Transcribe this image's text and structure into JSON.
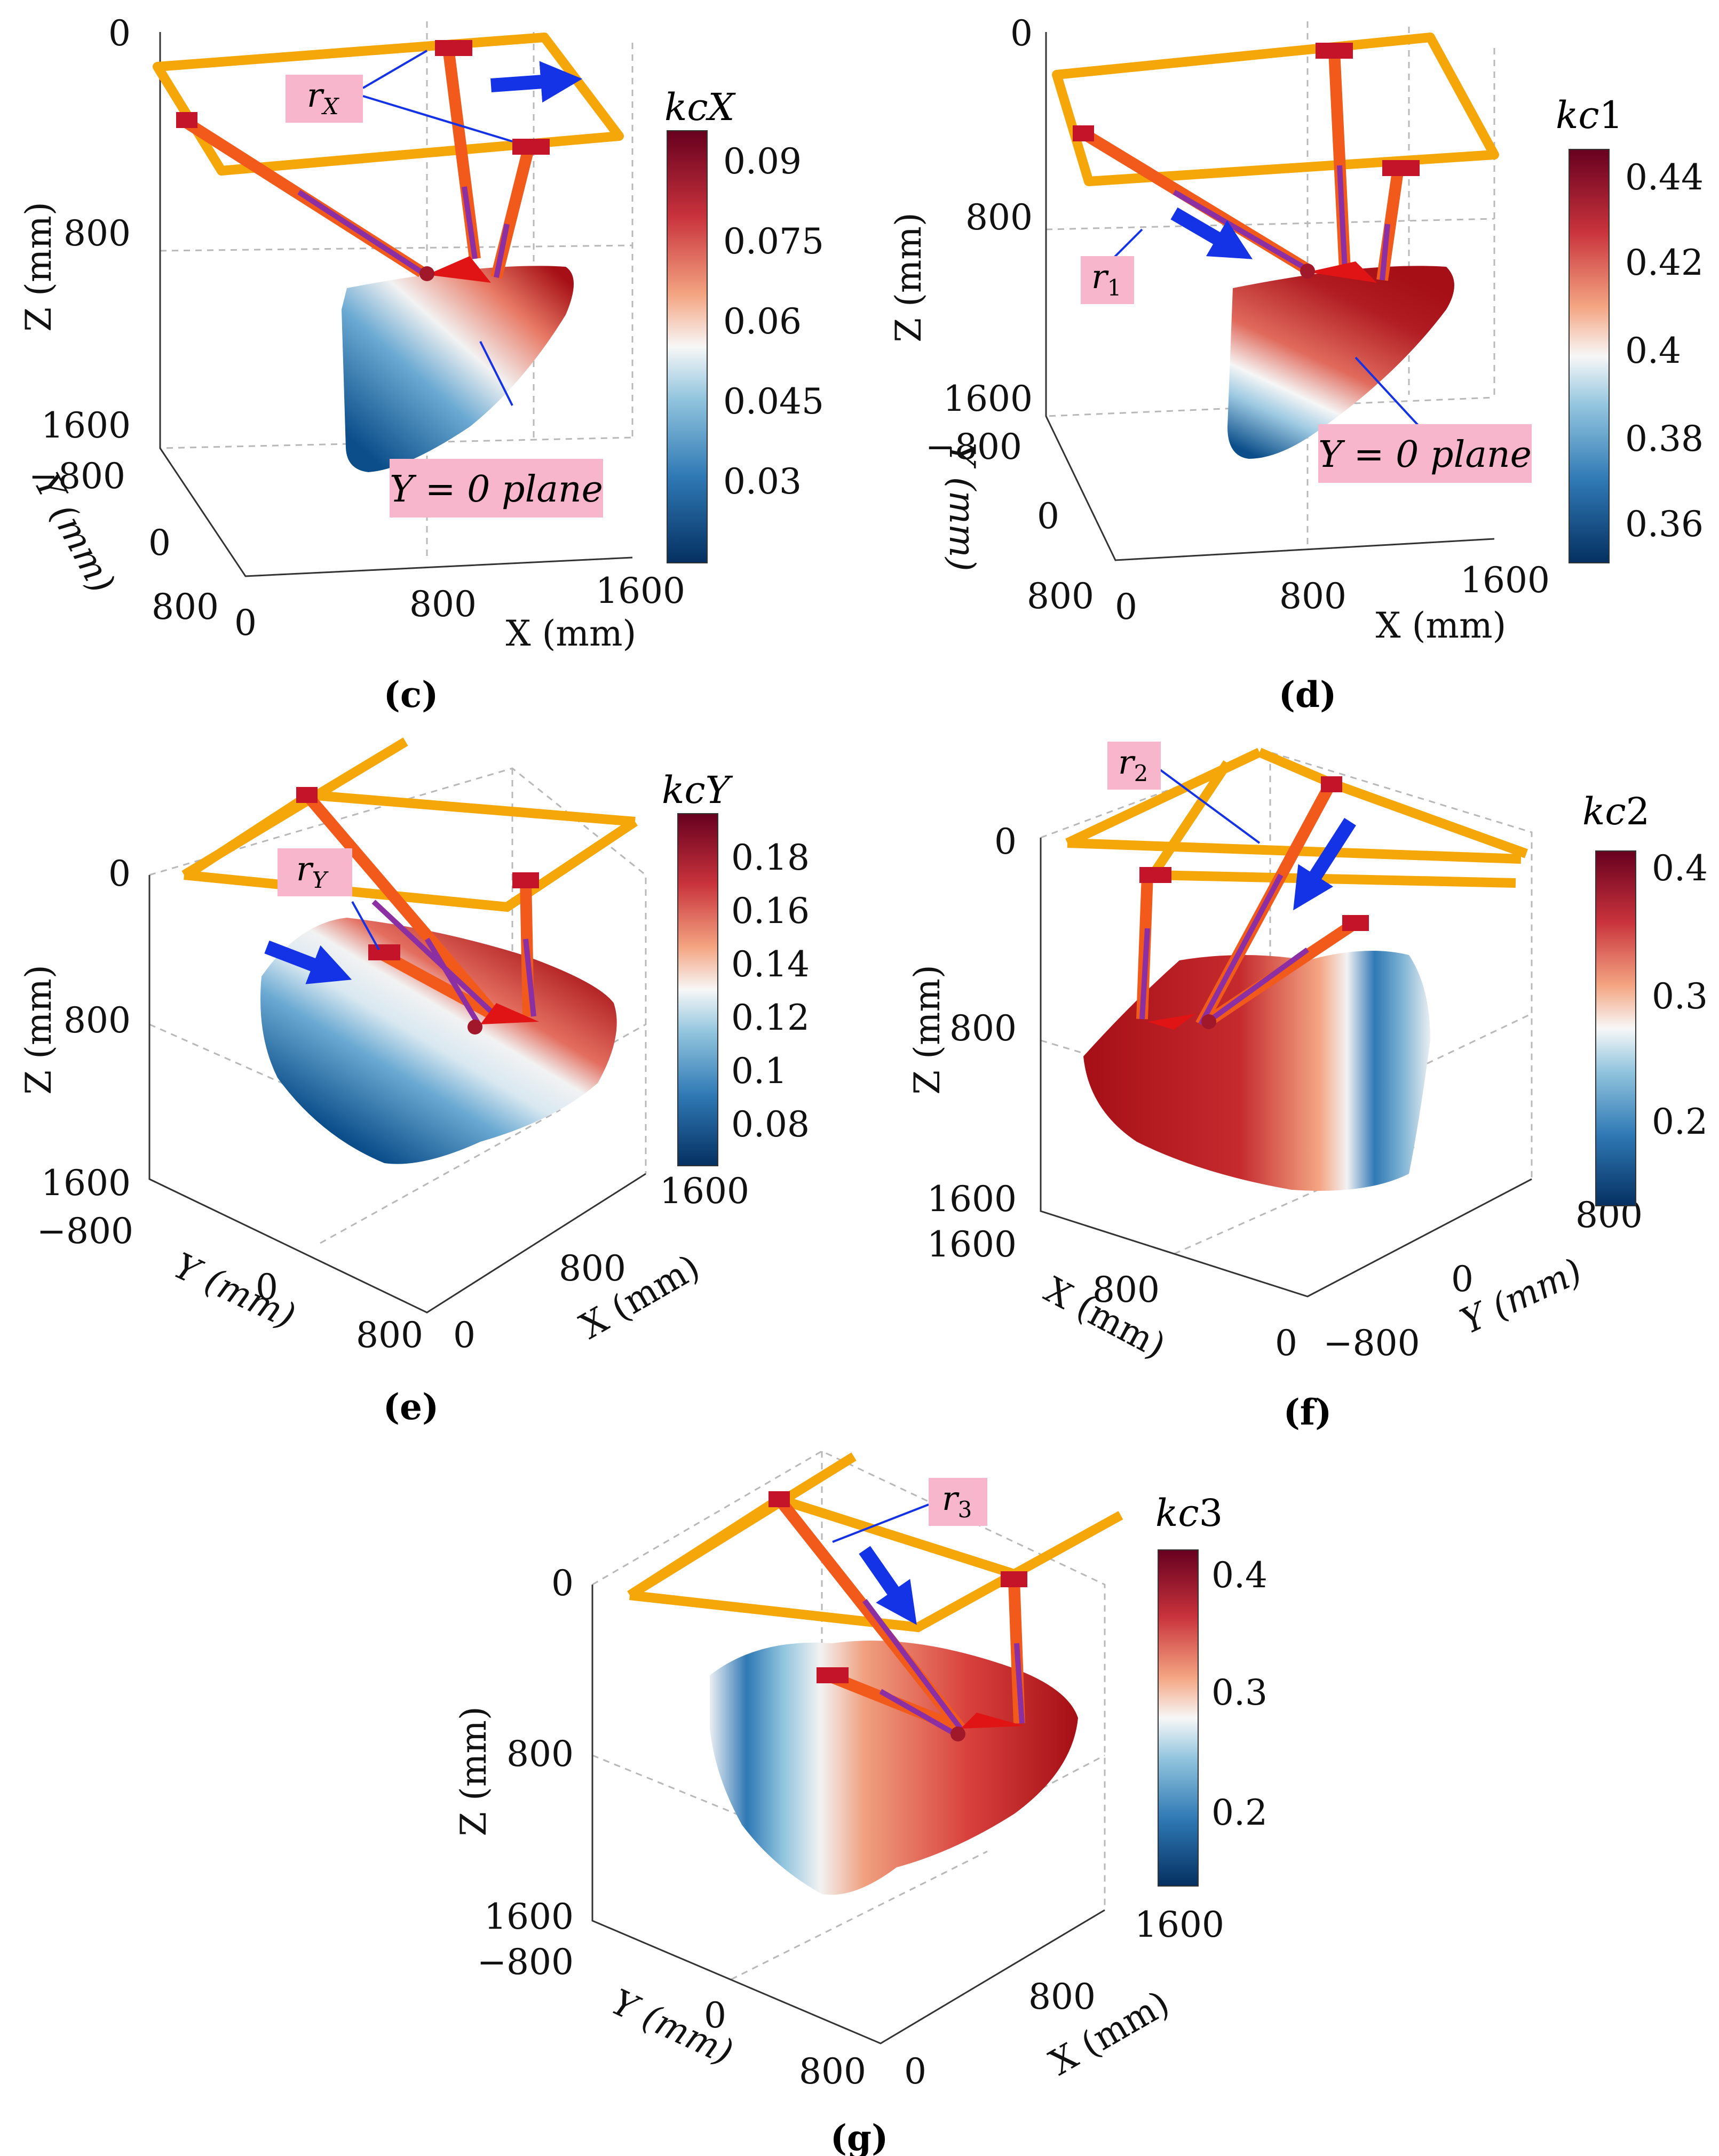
{
  "chart_data": [
    {
      "id": "c",
      "type": "scatter3d",
      "subtitle": "(c)",
      "z_label": "Z (mm)",
      "y_label": "Y (mm)",
      "x_label": "X (mm)",
      "z_ticks": [
        "0",
        "800",
        "1600"
      ],
      "y_ticks": [
        "−800",
        "0",
        "800"
      ],
      "x_ticks": [
        "0",
        "800",
        "1600"
      ],
      "colorbar": {
        "label_main": "kc",
        "label_sub": "X",
        "ticks": [
          "0.09",
          "0.075",
          "0.06",
          "0.045",
          "0.03"
        ]
      },
      "callouts": [
        {
          "main": "r",
          "sub": "X"
        },
        {
          "main": "Y = 0 plane",
          "sub": ""
        }
      ],
      "colors": {
        "high": "#a50f15",
        "low": "#0b4e8a"
      }
    },
    {
      "id": "d",
      "type": "scatter3d",
      "subtitle": "(d)",
      "z_label": "Z (mm)",
      "y_label": "Y (mm)",
      "x_label": "X (mm)",
      "z_ticks": [
        "0",
        "800",
        "1600"
      ],
      "y_ticks": [
        "−800",
        "0",
        "800"
      ],
      "x_ticks": [
        "0",
        "800",
        "1600"
      ],
      "colorbar": {
        "label_main": "kc",
        "label_sub": "1",
        "ticks": [
          "0.44",
          "0.42",
          "0.4",
          "0.38",
          "0.36"
        ]
      },
      "callouts": [
        {
          "main": "r",
          "sub": "1"
        },
        {
          "main": "Y = 0 plane",
          "sub": ""
        }
      ],
      "colors": {
        "high": "#a50f15",
        "low": "#0b4e8a"
      }
    },
    {
      "id": "e",
      "type": "scatter3d",
      "subtitle": "(e)",
      "z_label": "Z (mm)",
      "y_label": "Y (mm)",
      "x_label": "X (mm)",
      "z_ticks": [
        "0",
        "800",
        "1600"
      ],
      "y_ticks": [
        "−800",
        "0",
        "800"
      ],
      "x_ticks": [
        "1600",
        "800",
        "0"
      ],
      "colorbar": {
        "label_main": "kc",
        "label_sub": "Y",
        "ticks": [
          "0.18",
          "0.16",
          "0.14",
          "0.12",
          "0.1",
          "0.08"
        ]
      },
      "callouts": [
        {
          "main": "r",
          "sub": "Y"
        }
      ],
      "colors": {
        "high": "#a50f15",
        "low": "#0b4e8a"
      }
    },
    {
      "id": "f",
      "type": "scatter3d",
      "subtitle": "(f)",
      "z_label": "Z (mm)",
      "y_label": "Y (mm)",
      "x_label": "X (mm)",
      "z_ticks": [
        "0",
        "800",
        "1600"
      ],
      "y_ticks": [
        "800",
        "0",
        "−800"
      ],
      "x_ticks": [
        "1600",
        "800",
        "0"
      ],
      "colorbar": {
        "label_main": "kc",
        "label_sub": "2",
        "ticks": [
          "0.4",
          "0.3",
          "0.2"
        ]
      },
      "callouts": [
        {
          "main": "r",
          "sub": "2"
        }
      ],
      "colors": {
        "high": "#a50f15",
        "low": "#0b4e8a"
      }
    },
    {
      "id": "g",
      "type": "scatter3d",
      "subtitle": "(g)",
      "z_label": "Z (mm)",
      "y_label": "Y (mm)",
      "x_label": "X (mm)",
      "z_ticks": [
        "0",
        "800",
        "1600"
      ],
      "y_ticks": [
        "−800",
        "0",
        "800"
      ],
      "x_ticks": [
        "1600",
        "800",
        "0"
      ],
      "colorbar": {
        "label_main": "kc",
        "label_sub": "3",
        "ticks": [
          "0.4",
          "0.3",
          "0.2"
        ]
      },
      "callouts": [
        {
          "main": "r",
          "sub": "3"
        }
      ],
      "colors": {
        "high": "#a50f15",
        "low": "#0b4e8a"
      }
    }
  ]
}
